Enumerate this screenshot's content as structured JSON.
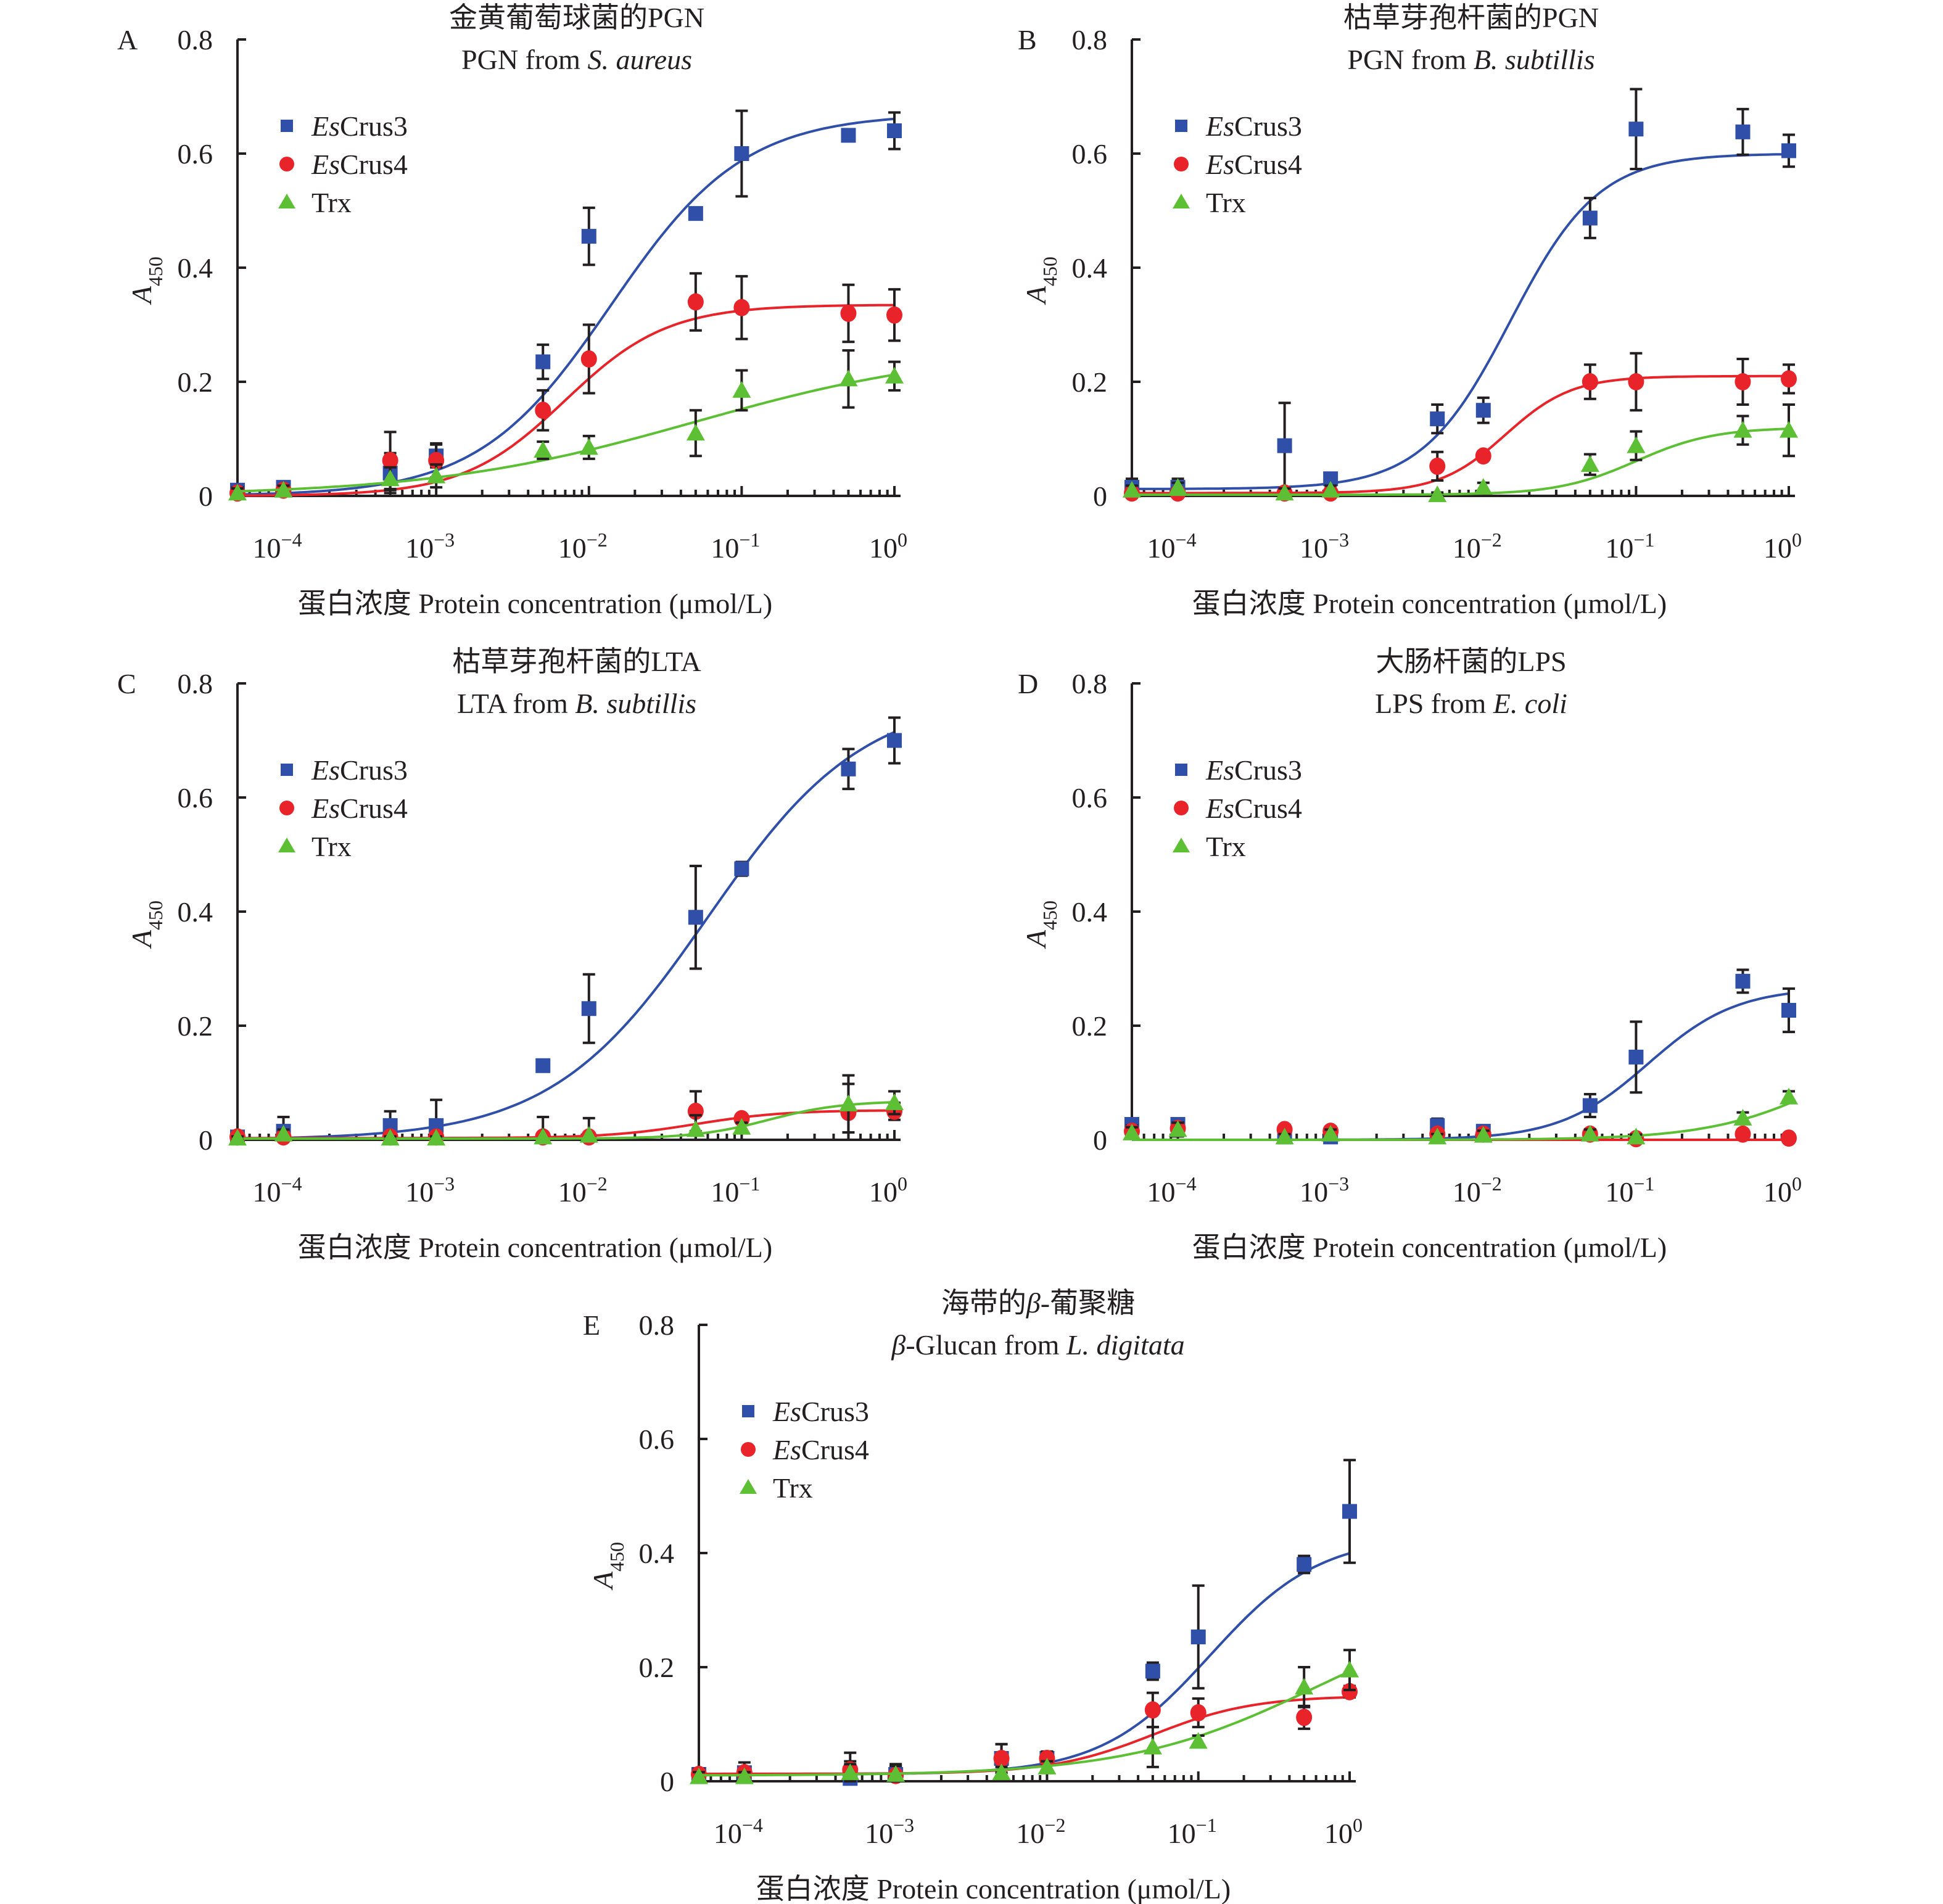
{
  "chart_data": [
    {
      "type": "scatter",
      "panel": "A",
      "title_cn": "金黄葡萄球菌的PGN",
      "title_en_prefix": "PGN from ",
      "title_en_italic": "S. aureus",
      "title_en_suffix": "",
      "xlabel": "蛋白浓度 Protein concentration (μmol/L)",
      "ylabel_main": "A",
      "ylabel_sub": "450",
      "xscale": "log",
      "xlim": [
        5e-05,
        1
      ],
      "ylim": [
        0,
        0.8
      ],
      "yticks": [
        "0",
        "0.2",
        "0.4",
        "0.6",
        "0.8"
      ],
      "xticks": [
        {
          "base": "10",
          "exp": "−4"
        },
        {
          "base": "10",
          "exp": "−3"
        },
        {
          "base": "10",
          "exp": "−2"
        },
        {
          "base": "10",
          "exp": "−1"
        },
        {
          "base": "10",
          "exp": "0"
        }
      ],
      "legend_position": "top-left",
      "x": [
        5e-05,
        0.0001,
        0.0005,
        0.001,
        0.005,
        0.01,
        0.05,
        0.1,
        0.5,
        1
      ],
      "series": [
        {
          "name_italic": "Es",
          "name": "Crus3",
          "marker": "square",
          "color": "#2f4fa8",
          "values": [
            0.01,
            0.015,
            0.04,
            0.07,
            0.235,
            0.455,
            0.495,
            0.6,
            0.632,
            0.64
          ],
          "errors": [
            0.01,
            0.008,
            0.035,
            0.02,
            0.03,
            0.05,
            0.005,
            0.075,
            0.005,
            0.032
          ],
          "fit": [
            0.0,
            0.67,
            0.014,
            1.0
          ]
        },
        {
          "name_italic": "Es",
          "name": "Crus4",
          "marker": "circle",
          "color": "#e8232a",
          "values": [
            0.005,
            0.01,
            0.062,
            0.062,
            0.15,
            0.24,
            0.34,
            0.33,
            0.32,
            0.317
          ],
          "errors": [
            0.01,
            0.008,
            0.05,
            0.03,
            0.035,
            0.06,
            0.05,
            0.055,
            0.05,
            0.045
          ],
          "fit": [
            0.0,
            0.335,
            0.007,
            1.3
          ]
        },
        {
          "name_italic": "",
          "name": "Trx",
          "marker": "triangle",
          "color": "#5cbf34",
          "values": [
            0.005,
            0.01,
            0.03,
            0.035,
            0.08,
            0.085,
            0.11,
            0.185,
            0.205,
            0.21
          ],
          "errors": [
            0.008,
            0.008,
            0.02,
            0.02,
            0.015,
            0.02,
            0.04,
            0.035,
            0.05,
            0.025
          ],
          "fit": [
            0.0,
            0.26,
            0.05,
            0.5
          ]
        }
      ]
    },
    {
      "type": "scatter",
      "panel": "B",
      "title_cn": "枯草芽孢杆菌的PGN",
      "title_en_prefix": "PGN from ",
      "title_en_italic": "B. subtillis",
      "title_en_suffix": "",
      "xlabel": "蛋白浓度 Protein concentration (μmol/L)",
      "ylabel_main": "A",
      "ylabel_sub": "450",
      "xscale": "log",
      "xlim": [
        5e-05,
        1
      ],
      "ylim": [
        0,
        0.8
      ],
      "yticks": [
        "0",
        "0.2",
        "0.4",
        "0.6",
        "0.8"
      ],
      "xticks": [
        {
          "base": "10",
          "exp": "−4"
        },
        {
          "base": "10",
          "exp": "−3"
        },
        {
          "base": "10",
          "exp": "−2"
        },
        {
          "base": "10",
          "exp": "−1"
        },
        {
          "base": "10",
          "exp": "0"
        }
      ],
      "legend_position": "top-left",
      "x": [
        5e-05,
        0.0001,
        0.0005,
        0.001,
        0.005,
        0.01,
        0.05,
        0.1,
        0.5,
        1
      ],
      "series": [
        {
          "name_italic": "Es",
          "name": "Crus3",
          "marker": "square",
          "color": "#2f4fa8",
          "values": [
            0.015,
            0.015,
            0.088,
            0.03,
            0.135,
            0.15,
            0.487,
            0.643,
            0.638,
            0.605
          ],
          "errors": [
            0.015,
            0.015,
            0.075,
            0.008,
            0.025,
            0.022,
            0.035,
            0.07,
            0.04,
            0.028
          ],
          "fit": [
            0.012,
            0.6,
            0.015,
            1.5
          ]
        },
        {
          "name_italic": "Es",
          "name": "Crus4",
          "marker": "circle",
          "color": "#e8232a",
          "values": [
            0.005,
            0.005,
            0.005,
            0.005,
            0.052,
            0.07,
            0.2,
            0.2,
            0.2,
            0.205
          ],
          "errors": [
            0.005,
            0.005,
            0.005,
            0.005,
            0.025,
            0.005,
            0.03,
            0.05,
            0.04,
            0.025
          ],
          "fit": [
            0.005,
            0.21,
            0.014,
            2.0
          ]
        },
        {
          "name_italic": "",
          "name": "Trx",
          "marker": "triangle",
          "color": "#5cbf34",
          "values": [
            0.01,
            0.015,
            0.005,
            0.01,
            0.002,
            0.015,
            0.055,
            0.088,
            0.115,
            0.115
          ],
          "errors": [
            0.008,
            0.008,
            0.008,
            0.008,
            0.004,
            0.008,
            0.018,
            0.025,
            0.025,
            0.045
          ],
          "fit": [
            0.002,
            0.12,
            0.1,
            1.7
          ]
        }
      ]
    },
    {
      "type": "scatter",
      "panel": "C",
      "title_cn": "枯草芽孢杆菌的LTA",
      "title_en_prefix": "LTA from ",
      "title_en_italic": "B. subtillis",
      "title_en_suffix": "",
      "xlabel": "蛋白浓度 Protein concentration (μmol/L)",
      "ylabel_main": "A",
      "ylabel_sub": "450",
      "xscale": "log",
      "xlim": [
        5e-05,
        1
      ],
      "ylim": [
        0,
        0.8
      ],
      "yticks": [
        "0",
        "0.2",
        "0.4",
        "0.6",
        "0.8"
      ],
      "xticks": [
        {
          "base": "10",
          "exp": "−4"
        },
        {
          "base": "10",
          "exp": "−3"
        },
        {
          "base": "10",
          "exp": "−2"
        },
        {
          "base": "10",
          "exp": "−1"
        },
        {
          "base": "10",
          "exp": "0"
        }
      ],
      "legend_position": "top-left",
      "x": [
        5e-05,
        0.0001,
        0.0005,
        0.001,
        0.005,
        0.01,
        0.05,
        0.1,
        0.5,
        1
      ],
      "series": [
        {
          "name_italic": "Es",
          "name": "Crus3",
          "marker": "square",
          "color": "#2f4fa8",
          "values": [
            0.005,
            0.015,
            0.025,
            0.025,
            0.13,
            0.23,
            0.39,
            0.475,
            0.65,
            0.7
          ],
          "errors": [
            0.008,
            0.025,
            0.025,
            0.045,
            0.005,
            0.06,
            0.09,
            0.012,
            0.035,
            0.04
          ],
          "fit": [
            0.0,
            0.78,
            0.06,
            0.85
          ]
        },
        {
          "name_italic": "Es",
          "name": "Crus4",
          "marker": "circle",
          "color": "#e8232a",
          "values": [
            0.005,
            0.005,
            0.005,
            0.005,
            0.005,
            0.005,
            0.05,
            0.037,
            0.048,
            0.05
          ],
          "errors": [
            0.005,
            0.005,
            0.005,
            0.005,
            0.005,
            0.005,
            0.035,
            0.005,
            0.05,
            0.015
          ],
          "fit": [
            0.003,
            0.052,
            0.05,
            1.5
          ]
        },
        {
          "name_italic": "",
          "name": "Trx",
          "marker": "triangle",
          "color": "#5cbf34",
          "values": [
            0.003,
            0.01,
            0.003,
            0.003,
            0.005,
            0.008,
            0.018,
            0.022,
            0.063,
            0.065
          ],
          "errors": [
            0.003,
            0.008,
            0.003,
            0.003,
            0.035,
            0.03,
            0.025,
            0.008,
            0.05,
            0.02
          ],
          "fit": [
            0.002,
            0.068,
            0.15,
            1.8
          ]
        }
      ]
    },
    {
      "type": "scatter",
      "panel": "D",
      "title_cn": "大肠杆菌的LPS",
      "title_en_prefix": "LPS from ",
      "title_en_italic": "E. coli",
      "title_en_suffix": "",
      "xlabel": "蛋白浓度 Protein concentration (μmol/L)",
      "ylabel_main": "A",
      "ylabel_sub": "450",
      "xscale": "log",
      "xlim": [
        5e-05,
        1
      ],
      "ylim": [
        0,
        0.8
      ],
      "yticks": [
        "0",
        "0.2",
        "0.4",
        "0.6",
        "0.8"
      ],
      "xticks": [
        {
          "base": "10",
          "exp": "−4"
        },
        {
          "base": "10",
          "exp": "−3"
        },
        {
          "base": "10",
          "exp": "−2"
        },
        {
          "base": "10",
          "exp": "−1"
        },
        {
          "base": "10",
          "exp": "0"
        }
      ],
      "legend_position": "top-left",
      "x": [
        5e-05,
        0.0001,
        0.0005,
        0.001,
        0.005,
        0.01,
        0.05,
        0.1,
        0.5,
        1
      ],
      "series": [
        {
          "name_italic": "Es",
          "name": "Crus3",
          "marker": "square",
          "color": "#2f4fa8",
          "values": [
            0.027,
            0.027,
            0.005,
            0.005,
            0.025,
            0.015,
            0.06,
            0.145,
            0.278,
            0.227
          ],
          "errors": [
            0.01,
            0.01,
            0.005,
            0.005,
            0.012,
            0.01,
            0.02,
            0.062,
            0.02,
            0.038
          ],
          "fit": [
            0.0,
            0.267,
            0.12,
            1.5
          ]
        },
        {
          "name_italic": "Es",
          "name": "Crus4",
          "marker": "circle",
          "color": "#e8232a",
          "values": [
            0.015,
            0.02,
            0.018,
            0.015,
            0.01,
            0.01,
            0.01,
            0.002,
            0.01,
            0.003
          ],
          "errors": [
            0.01,
            0.01,
            0.008,
            0.008,
            0.008,
            0.008,
            0.008,
            0.003,
            0.008,
            0.005
          ],
          "fit": [
            0.0,
            0.0,
            1.0,
            1.0
          ]
        },
        {
          "name_italic": "",
          "name": "Trx",
          "marker": "triangle",
          "color": "#5cbf34",
          "values": [
            0.012,
            0.018,
            0.005,
            0.01,
            0.005,
            0.008,
            0.01,
            0.005,
            0.038,
            0.075
          ],
          "errors": [
            0.01,
            0.012,
            0.005,
            0.008,
            0.005,
            0.008,
            0.008,
            0.004,
            0.01,
            0.01
          ],
          "fit": [
            0.0,
            0.2,
            2.0,
            1.1
          ]
        }
      ]
    },
    {
      "type": "scatter",
      "panel": "E",
      "title_cn_pre": "海带的",
      "title_cn_italic": "β",
      "title_cn_post": "-葡聚糖",
      "title_en_prefix": "",
      "title_en_italic_lead": "β",
      "title_en_mid": "-Glucan from ",
      "title_en_italic": "L. digitata",
      "xlabel": "蛋白浓度 Protein concentration (μmol/L)",
      "ylabel_main": "A",
      "ylabel_sub": "450",
      "xscale": "log",
      "xlim": [
        5e-05,
        1
      ],
      "ylim": [
        0,
        0.8
      ],
      "yticks": [
        "0",
        "0.2",
        "0.4",
        "0.6",
        "0.8"
      ],
      "xticks": [
        {
          "base": "10",
          "exp": "−4"
        },
        {
          "base": "10",
          "exp": "−3"
        },
        {
          "base": "10",
          "exp": "−2"
        },
        {
          "base": "10",
          "exp": "−1"
        },
        {
          "base": "10",
          "exp": "0"
        }
      ],
      "legend_position": "top-left",
      "x": [
        5e-05,
        0.0001,
        0.0005,
        0.001,
        0.005,
        0.01,
        0.05,
        0.1,
        0.5,
        1
      ],
      "series": [
        {
          "name_italic": "Es",
          "name": "Crus3",
          "marker": "square",
          "color": "#2f4fa8",
          "values": [
            0.012,
            0.015,
            0.005,
            0.012,
            0.04,
            0.04,
            0.193,
            0.253,
            0.38,
            0.473
          ],
          "errors": [
            0.01,
            0.01,
            0.03,
            0.015,
            0.025,
            0.012,
            0.015,
            0.09,
            0.015,
            0.09
          ],
          "fit": [
            0.012,
            0.43,
            0.12,
            1.2
          ]
        },
        {
          "name_italic": "Es",
          "name": "Crus4",
          "marker": "circle",
          "color": "#e8232a",
          "values": [
            0.012,
            0.015,
            0.02,
            0.01,
            0.04,
            0.04,
            0.125,
            0.12,
            0.112,
            0.157
          ],
          "errors": [
            0.01,
            0.018,
            0.03,
            0.02,
            0.025,
            0.012,
            0.03,
            0.025,
            0.02,
            0.01
          ],
          "fit": [
            0.013,
            0.15,
            0.05,
            1.3
          ]
        },
        {
          "name_italic": "",
          "name": "Trx",
          "marker": "triangle",
          "color": "#5cbf34",
          "values": [
            0.008,
            0.008,
            0.015,
            0.012,
            0.015,
            0.025,
            0.06,
            0.07,
            0.165,
            0.195
          ],
          "errors": [
            0.008,
            0.008,
            0.015,
            0.015,
            0.01,
            0.01,
            0.035,
            0.01,
            0.035,
            0.035
          ],
          "fit": [
            0.01,
            0.32,
            0.6,
            0.7
          ]
        }
      ]
    }
  ]
}
